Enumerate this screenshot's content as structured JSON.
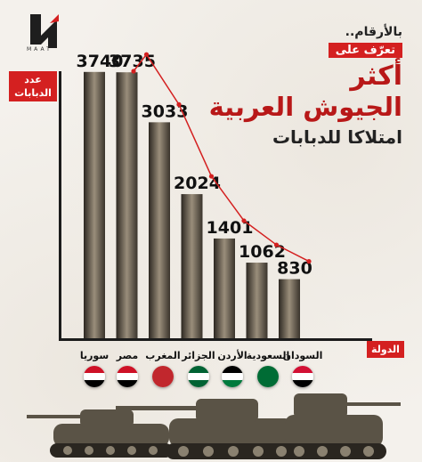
{
  "brand": {
    "logo_text": "MAAT"
  },
  "header": {
    "intro": "بالأرقام..",
    "tag": "تعرّف على",
    "title_line1": "أكثر",
    "title_line2": "الجيوش العربية",
    "subtitle": "امتلاكا للدبابات"
  },
  "chart_data": {
    "type": "bar",
    "categories": [
      "سوريا",
      "مصر",
      "المغرب",
      "الجزائر",
      "الأردن",
      "السعودية",
      "السودان"
    ],
    "values": [
      3740,
      3735,
      3033,
      2024,
      1401,
      1062,
      830
    ],
    "value_labels": [
      "3740",
      "3735",
      "3033",
      "2024",
      "1401",
      "1062",
      "830"
    ],
    "ylabel": "عدد الدبابات",
    "xlabel": "الدولة",
    "ylim": [
      0,
      4000
    ],
    "trend_line": true,
    "bar_color": "#6a5f50",
    "accent_color": "#d42020",
    "flags": [
      "syria-flag",
      "egypt-flag",
      "morocco-flag",
      "algeria-flag",
      "jordan-flag",
      "saudi-flag",
      "sudan-flag"
    ]
  }
}
